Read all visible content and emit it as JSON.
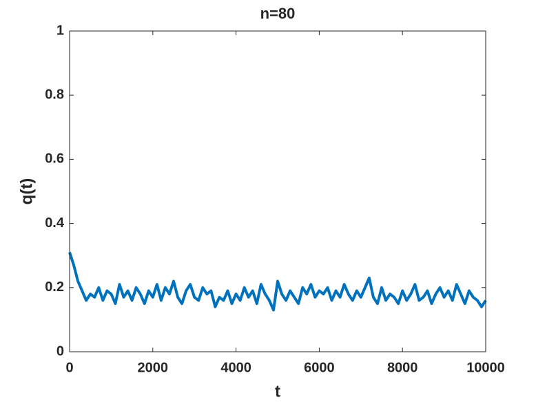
{
  "chart_data": {
    "type": "line",
    "title": "n=80",
    "xlabel": "t",
    "ylabel": "q(t)",
    "x": [
      0,
      100,
      200,
      300,
      400,
      500,
      600,
      700,
      800,
      900,
      1000,
      1100,
      1200,
      1300,
      1400,
      1500,
      1600,
      1700,
      1800,
      1900,
      2000,
      2100,
      2200,
      2300,
      2400,
      2500,
      2600,
      2700,
      2800,
      2900,
      3000,
      3100,
      3200,
      3300,
      3400,
      3500,
      3600,
      3700,
      3800,
      3900,
      4000,
      4100,
      4200,
      4300,
      4400,
      4500,
      4600,
      4700,
      4800,
      4900,
      5000,
      5100,
      5200,
      5300,
      5400,
      5500,
      5600,
      5700,
      5800,
      5900,
      6000,
      6100,
      6200,
      6300,
      6400,
      6500,
      6600,
      6700,
      6800,
      6900,
      7000,
      7100,
      7200,
      7300,
      7400,
      7500,
      7600,
      7700,
      7800,
      7900,
      8000,
      8100,
      8200,
      8300,
      8400,
      8500,
      8600,
      8700,
      8800,
      8900,
      9000,
      9100,
      9200,
      9300,
      9400,
      9500,
      9600,
      9700,
      9800,
      9900,
      10000
    ],
    "series": [
      {
        "color": "#0072bd",
        "values": [
          0.31,
          0.27,
          0.22,
          0.19,
          0.16,
          0.18,
          0.17,
          0.2,
          0.16,
          0.19,
          0.18,
          0.15,
          0.21,
          0.17,
          0.19,
          0.16,
          0.2,
          0.18,
          0.15,
          0.19,
          0.17,
          0.21,
          0.16,
          0.2,
          0.18,
          0.22,
          0.17,
          0.15,
          0.19,
          0.21,
          0.17,
          0.16,
          0.2,
          0.18,
          0.19,
          0.14,
          0.17,
          0.16,
          0.19,
          0.15,
          0.18,
          0.16,
          0.2,
          0.17,
          0.19,
          0.15,
          0.21,
          0.18,
          0.16,
          0.13,
          0.22,
          0.18,
          0.16,
          0.19,
          0.17,
          0.15,
          0.2,
          0.18,
          0.21,
          0.17,
          0.19,
          0.18,
          0.2,
          0.16,
          0.19,
          0.17,
          0.21,
          0.18,
          0.16,
          0.19,
          0.17,
          0.2,
          0.23,
          0.17,
          0.15,
          0.2,
          0.16,
          0.18,
          0.17,
          0.15,
          0.19,
          0.16,
          0.18,
          0.21,
          0.16,
          0.17,
          0.19,
          0.15,
          0.18,
          0.2,
          0.17,
          0.19,
          0.16,
          0.21,
          0.18,
          0.15,
          0.19,
          0.17,
          0.16,
          0.14,
          0.16
        ]
      }
    ],
    "xlim": [
      0,
      10000
    ],
    "xticks": [
      0,
      2000,
      4000,
      6000,
      8000,
      10000
    ],
    "ylim": [
      0,
      1
    ],
    "yticks": [
      0,
      0.2,
      0.4,
      0.6,
      0.8,
      1
    ]
  }
}
